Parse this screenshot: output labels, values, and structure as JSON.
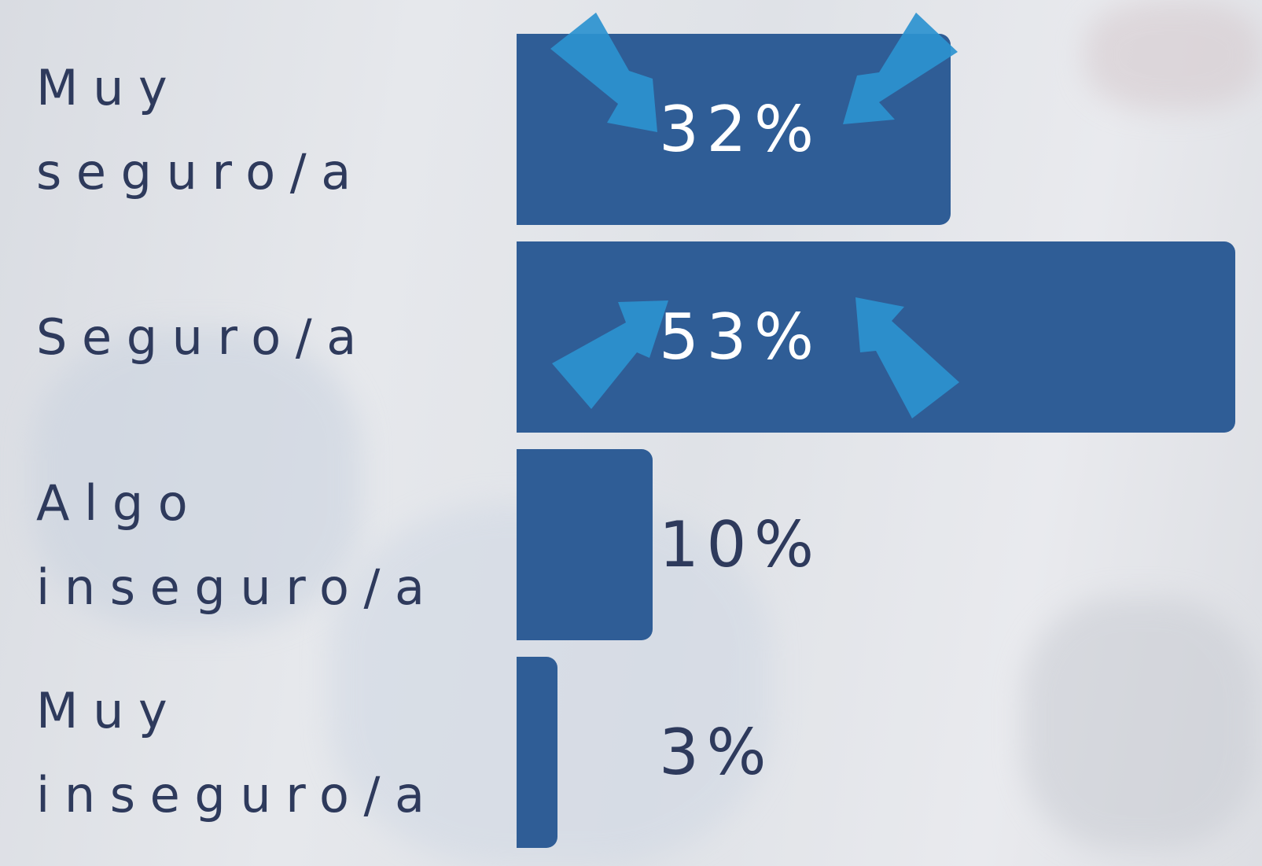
{
  "chart_data": {
    "type": "bar",
    "orientation": "horizontal",
    "categories": [
      "Muy seguro/a",
      "Seguro/a",
      "Algo inseguro/a",
      "Muy inseguro/a"
    ],
    "values": [
      32,
      53,
      10,
      3
    ],
    "value_labels": [
      "32%",
      "53%",
      "10%",
      "3%"
    ],
    "color": "#2f5d96"
  }
}
